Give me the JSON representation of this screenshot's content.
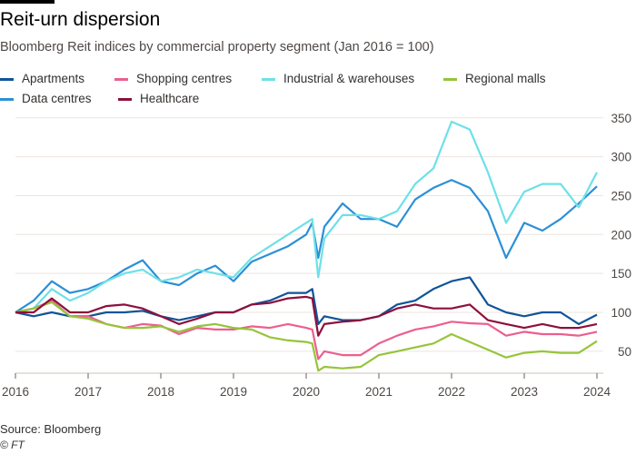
{
  "header": {
    "title": "Reit-urn dispersion",
    "subtitle": "Bloomberg Reit indices by commercial property segment (Jan 2016 = 100)"
  },
  "footer": {
    "source": "Source: Bloomberg",
    "credit": "© FT"
  },
  "chart_data": {
    "type": "line",
    "title": "Reit-urn dispersion",
    "subtitle": "Bloomberg Reit indices by commercial property segment (Jan 2016 = 100)",
    "xlabel": "",
    "ylabel": "",
    "ylim": [
      22,
      355
    ],
    "xlim": [
      "2016-01",
      "2024-02"
    ],
    "yticks": [
      50,
      100,
      150,
      200,
      250,
      300,
      350
    ],
    "xticks": [
      "2016",
      "2017",
      "2018",
      "2019",
      "2020",
      "2021",
      "2022",
      "2023",
      "2024"
    ],
    "grid": true,
    "legend_placement": "top-left",
    "x": [
      "2016-01",
      "2016-04",
      "2016-07",
      "2016-10",
      "2017-01",
      "2017-04",
      "2017-07",
      "2017-10",
      "2018-01",
      "2018-04",
      "2018-07",
      "2018-10",
      "2019-01",
      "2019-04",
      "2019-07",
      "2019-10",
      "2020-01",
      "2020-02",
      "2020-03",
      "2020-04",
      "2020-07",
      "2020-10",
      "2021-01",
      "2021-04",
      "2021-07",
      "2021-10",
      "2022-01",
      "2022-04",
      "2022-07",
      "2022-10",
      "2023-01",
      "2023-04",
      "2023-07",
      "2023-10",
      "2024-01"
    ],
    "series": [
      {
        "name": "Data centres",
        "color": "#2b8fd6",
        "values": [
          100,
          115,
          140,
          125,
          130,
          140,
          155,
          167,
          140,
          135,
          150,
          160,
          140,
          165,
          175,
          185,
          200,
          215,
          170,
          210,
          240,
          220,
          220,
          210,
          245,
          260,
          270,
          260,
          230,
          170,
          215,
          205,
          220,
          240,
          262
        ]
      },
      {
        "name": "Industrial & warehouses",
        "color": "#6ee0e8",
        "values": [
          100,
          105,
          130,
          115,
          125,
          140,
          150,
          155,
          140,
          145,
          155,
          150,
          145,
          170,
          185,
          200,
          215,
          220,
          145,
          195,
          225,
          225,
          220,
          230,
          265,
          285,
          345,
          335,
          280,
          215,
          255,
          265,
          265,
          235,
          280
        ]
      },
      {
        "name": "Apartments",
        "color": "#0f5499",
        "values": [
          100,
          95,
          100,
          95,
          95,
          100,
          100,
          102,
          95,
          90,
          95,
          100,
          100,
          110,
          115,
          125,
          125,
          130,
          85,
          95,
          90,
          90,
          95,
          110,
          115,
          130,
          140,
          145,
          110,
          100,
          95,
          100,
          100,
          85,
          97
        ]
      },
      {
        "name": "Shopping centres",
        "color": "#ec5f8e",
        "values": [
          100,
          105,
          115,
          95,
          95,
          85,
          80,
          85,
          83,
          72,
          80,
          78,
          78,
          82,
          80,
          85,
          80,
          78,
          40,
          50,
          45,
          45,
          60,
          70,
          78,
          82,
          88,
          86,
          85,
          70,
          75,
          72,
          72,
          70,
          75
        ]
      },
      {
        "name": "Regional malls",
        "color": "#96c43a",
        "values": [
          100,
          105,
          113,
          95,
          92,
          85,
          80,
          80,
          82,
          75,
          82,
          85,
          80,
          78,
          68,
          64,
          62,
          60,
          25,
          30,
          28,
          30,
          45,
          50,
          55,
          60,
          72,
          62,
          52,
          42,
          48,
          50,
          48,
          48,
          63
        ]
      },
      {
        "name": "Healthcare",
        "color": "#8d0f3c",
        "values": [
          100,
          100,
          118,
          100,
          100,
          108,
          110,
          105,
          95,
          85,
          92,
          100,
          100,
          110,
          112,
          118,
          120,
          118,
          70,
          85,
          88,
          90,
          95,
          105,
          110,
          105,
          105,
          110,
          90,
          85,
          80,
          85,
          80,
          80,
          85
        ]
      }
    ]
  }
}
